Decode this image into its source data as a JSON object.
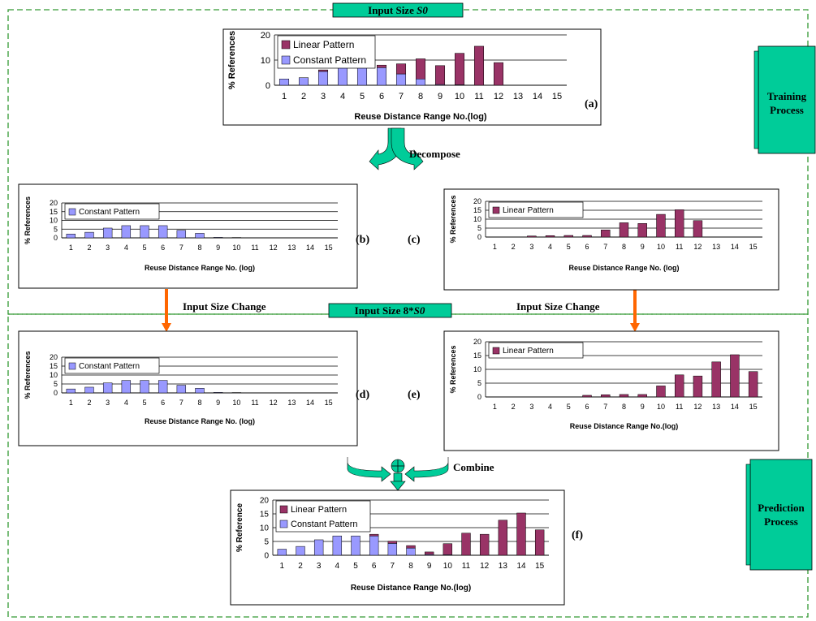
{
  "sections": {
    "training": {
      "input_size_prefix": "Input Size ",
      "input_size_var": "S0",
      "process_label_line1": "Training",
      "process_label_line2": "Process"
    },
    "prediction": {
      "input_size_prefix": "Input Size 8*",
      "input_size_var": "S0",
      "process_label_line1": "Prediction",
      "process_label_line2": "Process"
    }
  },
  "annotations": {
    "decompose": "Decompose",
    "input_size_change": "Input Size Change",
    "combine": "Combine"
  },
  "colors": {
    "linear": "#993366",
    "constant": "#9999FF",
    "section_border": "#339933",
    "panel_fill": "#00CC99",
    "arrow_orange": "#FF6600"
  },
  "chart_data": [
    {
      "id": "a",
      "panel_label": "(a)",
      "type": "bar",
      "stacked": true,
      "categories": [
        "1",
        "2",
        "3",
        "4",
        "5",
        "6",
        "7",
        "8",
        "9",
        "10",
        "11",
        "12",
        "13",
        "14",
        "15"
      ],
      "series": [
        {
          "name": "Constant Pattern",
          "values": [
            2.5,
            3,
            5.5,
            7,
            7,
            7,
            4.5,
            2.5,
            0.3,
            0.2,
            0,
            0,
            0,
            0,
            0
          ]
        },
        {
          "name": "Linear Pattern",
          "values": [
            0,
            0,
            0.6,
            1,
            1,
            1,
            4,
            8,
            7.5,
            12.5,
            15.5,
            9,
            0,
            0,
            0
          ]
        }
      ],
      "legend_order": [
        "Linear Pattern",
        "Constant Pattern"
      ],
      "ylabel": "% References",
      "xlabel": "Reuse Distance Range No.(log)",
      "ylim": [
        0,
        20
      ],
      "yticks": [
        0,
        10,
        20
      ],
      "legend": "top-left"
    },
    {
      "id": "b",
      "panel_label": "(b)",
      "type": "bar",
      "categories": [
        "1",
        "2",
        "3",
        "4",
        "5",
        "6",
        "7",
        "8",
        "9",
        "10",
        "11",
        "12",
        "13",
        "14",
        "15"
      ],
      "series": [
        {
          "name": "Constant Pattern",
          "values": [
            2.2,
            3.2,
            5.6,
            7,
            7,
            7,
            4.3,
            2.6,
            0.3,
            0.2,
            0,
            0,
            0,
            0,
            0
          ]
        }
      ],
      "legend_order": [
        "Constant Pattern"
      ],
      "ylabel": "% References",
      "xlabel": "Reuse Distance Range No. (log)",
      "ylim": [
        0,
        20
      ],
      "yticks": [
        0,
        5,
        10,
        15,
        20
      ],
      "legend": "top-left"
    },
    {
      "id": "c",
      "panel_label": "(c)",
      "type": "bar",
      "categories": [
        "1",
        "2",
        "3",
        "4",
        "5",
        "6",
        "7",
        "8",
        "9",
        "10",
        "11",
        "12",
        "13",
        "14",
        "15"
      ],
      "series": [
        {
          "name": "Linear Pattern",
          "values": [
            0,
            0,
            0.6,
            0.8,
            0.9,
            0.9,
            4,
            8,
            7.6,
            12.7,
            15.3,
            9.2,
            0,
            0,
            0
          ]
        }
      ],
      "legend_order": [
        "Linear Pattern"
      ],
      "ylabel": "% References",
      "xlabel": "Reuse Distance Range No. (log)",
      "ylim": [
        0,
        20
      ],
      "yticks": [
        0,
        5,
        10,
        15,
        20
      ],
      "legend": "top-left"
    },
    {
      "id": "d",
      "panel_label": "(d)",
      "type": "bar",
      "categories": [
        "1",
        "2",
        "3",
        "4",
        "5",
        "6",
        "7",
        "8",
        "9",
        "10",
        "11",
        "12",
        "13",
        "14",
        "15"
      ],
      "series": [
        {
          "name": "Constant Pattern",
          "values": [
            2.2,
            3.2,
            5.6,
            7,
            7,
            7,
            4.3,
            2.6,
            0.3,
            0.2,
            0,
            0,
            0,
            0,
            0
          ]
        }
      ],
      "legend_order": [
        "Constant Pattern"
      ],
      "ylabel": "% References",
      "xlabel": "Reuse Distance Range No. (log)",
      "ylim": [
        0,
        20
      ],
      "yticks": [
        0,
        5,
        10,
        15,
        20
      ],
      "legend": "top-left"
    },
    {
      "id": "e",
      "panel_label": "(e)",
      "type": "bar",
      "categories": [
        "1",
        "2",
        "3",
        "4",
        "5",
        "6",
        "7",
        "8",
        "9",
        "10",
        "11",
        "12",
        "13",
        "14",
        "15"
      ],
      "series": [
        {
          "name": "Linear Pattern",
          "values": [
            0,
            0,
            0,
            0,
            0,
            0.6,
            0.8,
            0.9,
            0.9,
            4,
            8,
            7.6,
            12.7,
            15.3,
            9.2
          ]
        }
      ],
      "legend_order": [
        "Linear Pattern"
      ],
      "ylabel": "% References",
      "xlabel": "Reuse Distance Range No.(log)",
      "ylim": [
        0,
        20
      ],
      "yticks": [
        0,
        5,
        10,
        15,
        20
      ],
      "legend": "top-left"
    },
    {
      "id": "f",
      "panel_label": "(f)",
      "type": "bar",
      "stacked": true,
      "categories": [
        "1",
        "2",
        "3",
        "4",
        "5",
        "6",
        "7",
        "8",
        "9",
        "10",
        "11",
        "12",
        "13",
        "14",
        "15"
      ],
      "series": [
        {
          "name": "Constant Pattern",
          "values": [
            2.2,
            3.2,
            5.6,
            7,
            7,
            7,
            4.3,
            2.6,
            0.3,
            0.2,
            0,
            0,
            0,
            0,
            0
          ]
        },
        {
          "name": "Linear Pattern",
          "values": [
            0,
            0,
            0,
            0,
            0,
            0.6,
            0.8,
            0.9,
            0.9,
            4,
            8,
            7.6,
            12.7,
            15.3,
            9.2
          ]
        }
      ],
      "legend_order": [
        "Linear Pattern",
        "Constant Pattern"
      ],
      "ylabel": "% Reference",
      "xlabel": "Reuse Distance Range No.(log)",
      "ylim": [
        0,
        20
      ],
      "yticks": [
        0,
        5,
        10,
        15,
        20
      ],
      "legend": "top-left"
    }
  ]
}
